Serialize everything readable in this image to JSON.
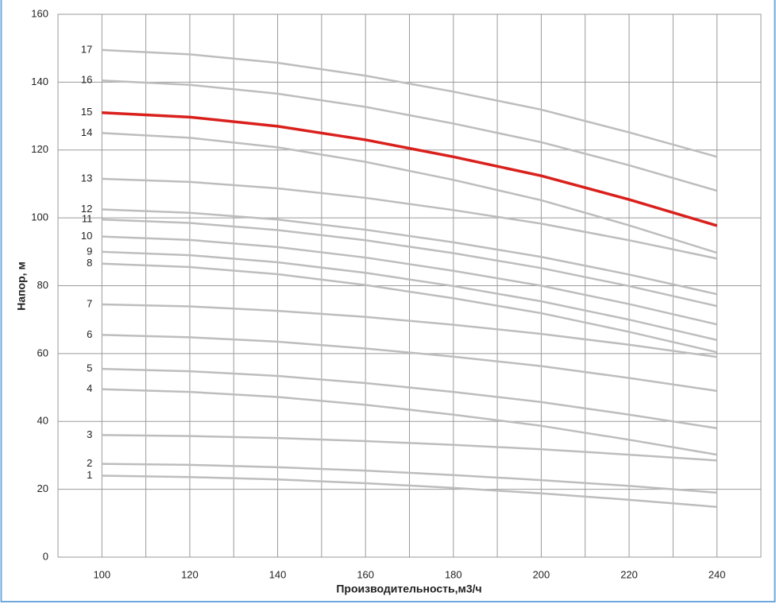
{
  "chart_data": {
    "type": "line",
    "x_label": "Производительность,м3/ч",
    "y_label": "Напор, м",
    "x": [
      100,
      120,
      140,
      160,
      180,
      200,
      220,
      240
    ],
    "xlim": [
      90,
      250
    ],
    "xticks": [
      100,
      120,
      140,
      160,
      180,
      200,
      220,
      240
    ],
    "ylim": [
      0,
      160
    ],
    "yticks": [
      0,
      20,
      40,
      60,
      80,
      100,
      120,
      140,
      160
    ],
    "grid": true,
    "series": [
      {
        "name": "1",
        "color": "#bdbdbd",
        "values": [
          24,
          23.6,
          22.9,
          21.8,
          20.4,
          18.8,
          16.9,
          14.8
        ]
      },
      {
        "name": "2",
        "color": "#bdbdbd",
        "values": [
          27.5,
          27.2,
          26.5,
          25.5,
          24.2,
          22.7,
          21,
          19
        ]
      },
      {
        "name": "3",
        "color": "#bdbdbd",
        "values": [
          36,
          35.7,
          35.1,
          34.2,
          33.1,
          31.8,
          30.2,
          28.5
        ]
      },
      {
        "name": "4",
        "color": "#bdbdbd",
        "values": [
          49.5,
          48.7,
          47.2,
          44.9,
          42,
          38.7,
          34.6,
          30.2
        ]
      },
      {
        "name": "5",
        "color": "#bdbdbd",
        "values": [
          55.5,
          54.8,
          53.4,
          51.3,
          48.7,
          45.7,
          42,
          38
        ]
      },
      {
        "name": "6",
        "color": "#bdbdbd",
        "values": [
          65.5,
          64.8,
          63.5,
          61.5,
          59.1,
          56.3,
          52.8,
          49
        ]
      },
      {
        "name": "7",
        "color": "#bdbdbd",
        "values": [
          74.5,
          73.9,
          72.6,
          70.8,
          68.5,
          65.8,
          62.6,
          59
        ]
      },
      {
        "name": "8",
        "color": "#bdbdbd",
        "values": [
          86.5,
          85.5,
          83.4,
          80.2,
          76.3,
          71.9,
          66.4,
          60.4
        ]
      },
      {
        "name": "9",
        "color": "#bdbdbd",
        "values": [
          90,
          89,
          86.9,
          83.8,
          79.9,
          75.4,
          70,
          64
        ]
      },
      {
        "name": "10",
        "color": "#bdbdbd",
        "values": [
          94.5,
          93.5,
          91.4,
          88.3,
          84.4,
          80,
          74.6,
          68.6
        ]
      },
      {
        "name": "11",
        "color": "#bdbdbd",
        "values": [
          99.5,
          98.5,
          96.4,
          93.4,
          89.6,
          85.2,
          79.9,
          74
        ]
      },
      {
        "name": "12",
        "color": "#bdbdbd",
        "values": [
          102.5,
          101.5,
          99.5,
          96.5,
          92.8,
          88.5,
          83.3,
          77.5
        ]
      },
      {
        "name": "13",
        "color": "#bdbdbd",
        "values": [
          111.5,
          110.6,
          108.7,
          105.9,
          102.3,
          98.3,
          93.4,
          88
        ]
      },
      {
        "name": "14",
        "color": "#bdbdbd",
        "values": [
          125,
          123.6,
          120.8,
          116.5,
          111.2,
          105.2,
          97.8,
          89.7
        ]
      },
      {
        "name": "15",
        "color": "#d9201c",
        "values": [
          131,
          129.7,
          127,
          123,
          118,
          112.4,
          105.4,
          97.7
        ]
      },
      {
        "name": "16",
        "color": "#bdbdbd",
        "values": [
          140.5,
          139.2,
          136.6,
          132.7,
          127.8,
          122.3,
          115.5,
          108
        ]
      },
      {
        "name": "17",
        "color": "#bdbdbd",
        "values": [
          149.5,
          148.2,
          145.7,
          141.9,
          137.2,
          131.9,
          125.2,
          118
        ]
      }
    ]
  }
}
